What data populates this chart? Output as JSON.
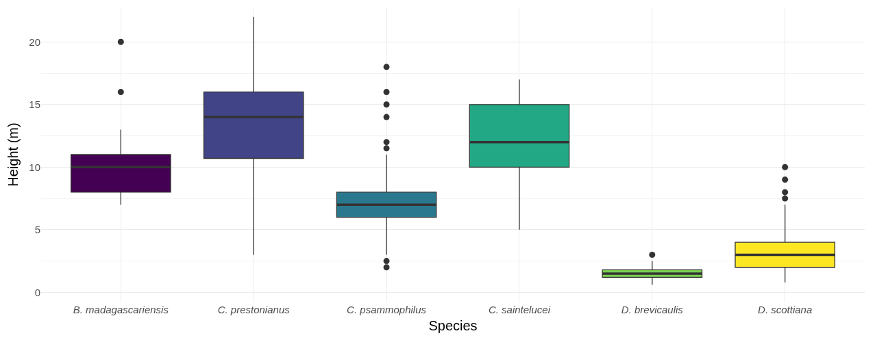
{
  "chart_data": {
    "type": "box",
    "xlabel": "Species",
    "ylabel": "Height (m)",
    "categories": [
      "B. madagascariensis",
      "C. prestonianus",
      "C. psammophilus",
      "C. saintelucei",
      "D. brevicaulis",
      "D. scottiana"
    ],
    "colors": [
      "#440154",
      "#414487",
      "#2a788e",
      "#22a884",
      "#7ad151",
      "#fde725"
    ],
    "boxes": [
      {
        "low": 7,
        "q1": 8,
        "median": 10,
        "q3": 11,
        "high": 13,
        "outliers": [
          16,
          20
        ]
      },
      {
        "low": 3,
        "q1": 10.7,
        "median": 14,
        "q3": 16,
        "high": 22
      },
      {
        "low": 3,
        "q1": 6,
        "median": 7,
        "q3": 8,
        "high": 11,
        "outliers": [
          2,
          2.5,
          11.5,
          12,
          14,
          15,
          16,
          18
        ]
      },
      {
        "low": 5,
        "q1": 10,
        "median": 12,
        "q3": 15,
        "high": 17
      },
      {
        "low": 0.6,
        "q1": 1.2,
        "median": 1.5,
        "q3": 1.8,
        "high": 2.5,
        "outliers": [
          3
        ]
      },
      {
        "low": 0.8,
        "q1": 2,
        "median": 3,
        "q3": 4,
        "high": 7,
        "outliers": [
          7.5,
          8,
          9,
          10
        ]
      }
    ],
    "ylim": [
      -0.8,
      22.8
    ],
    "yticks": [
      0,
      5,
      10,
      15,
      20
    ],
    "grid": true
  }
}
